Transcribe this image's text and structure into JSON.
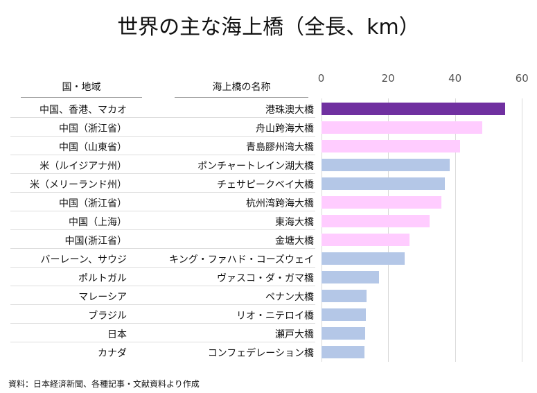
{
  "chart_data": {
    "type": "bar",
    "orientation": "horizontal",
    "title": "世界の主な海上橋（全長、km）",
    "column_headers": [
      "国・地域",
      "海上橋の名称"
    ],
    "xlim": [
      0,
      60
    ],
    "xticks": [
      0,
      20,
      40,
      60
    ],
    "grid": true,
    "colors": {
      "highlight": "#7030a0",
      "china": "#ffccff",
      "other": "#b4c7e7"
    },
    "rows": [
      {
        "region": "中国、香港、マカオ",
        "name": "港珠澳大橋",
        "value": 55,
        "group": "highlight"
      },
      {
        "region": "中国（浙江省）",
        "name": "舟山跨海大橋",
        "value": 48.2,
        "group": "china"
      },
      {
        "region": "中国（山東省）",
        "name": "青島膠州湾大橋",
        "value": 41.6,
        "group": "china"
      },
      {
        "region": "米（ルイジアナ州）",
        "name": "ポンチャートレイン湖大橋",
        "value": 38.4,
        "group": "other"
      },
      {
        "region": "米（メリーランド州）",
        "name": "チェサピークベイ大橋",
        "value": 37,
        "group": "other"
      },
      {
        "region": "中国（浙江省）",
        "name": "杭州湾跨海大橋",
        "value": 36,
        "group": "china"
      },
      {
        "region": "中国（上海）",
        "name": "東海大橋",
        "value": 32.5,
        "group": "china"
      },
      {
        "region": "中国(浙江省）",
        "name": "金塘大橋",
        "value": 26.5,
        "group": "china"
      },
      {
        "region": "バーレーン、サウジ",
        "name": "キング・ファハド・コーズウェイ",
        "value": 25,
        "group": "other"
      },
      {
        "region": "ポルトガル",
        "name": "ヴァスコ・ダ・ガマ橋",
        "value": 17.2,
        "group": "other"
      },
      {
        "region": "マレーシア",
        "name": "ペナン大橋",
        "value": 13.5,
        "group": "other"
      },
      {
        "region": "ブラジル",
        "name": "リオ・ニテロイ橋",
        "value": 13.3,
        "group": "other"
      },
      {
        "region": "日本",
        "name": "瀬戸大橋",
        "value": 13.1,
        "group": "other"
      },
      {
        "region": "カナダ",
        "name": "コンフェデレーション橋",
        "value": 12.9,
        "group": "other"
      }
    ],
    "source": "資料：日本経済新聞、各種記事・文献資料より作成"
  }
}
